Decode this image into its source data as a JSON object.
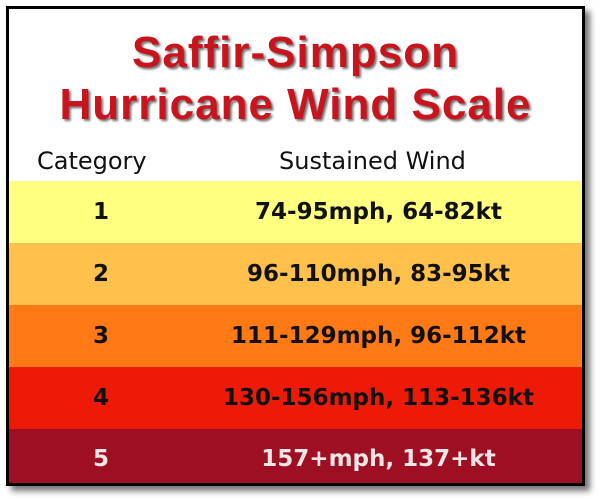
{
  "title": {
    "line1": "Saffir-Simpson",
    "line2": "Hurricane Wind Scale",
    "color": "#c8141c"
  },
  "headers": {
    "category": "Category",
    "wind": "Sustained Wind"
  },
  "rows": [
    {
      "category": "1",
      "wind": "74-95mph, 64-82kt",
      "bg": "#ffff80",
      "fg": "#111111"
    },
    {
      "category": "2",
      "wind": "96-110mph, 83-95kt",
      "bg": "#ffc04c",
      "fg": "#111111"
    },
    {
      "category": "3",
      "wind": "111-129mph, 96-112kt",
      "bg": "#ff7a15",
      "fg": "#111111"
    },
    {
      "category": "4",
      "wind": "130-156mph, 113-136kt",
      "bg": "#ee1a08",
      "fg": "#111111"
    },
    {
      "category": "5",
      "wind": "157+mph, 137+kt",
      "bg": "#9e0f24",
      "fg": "#f2e6e6"
    }
  ]
}
